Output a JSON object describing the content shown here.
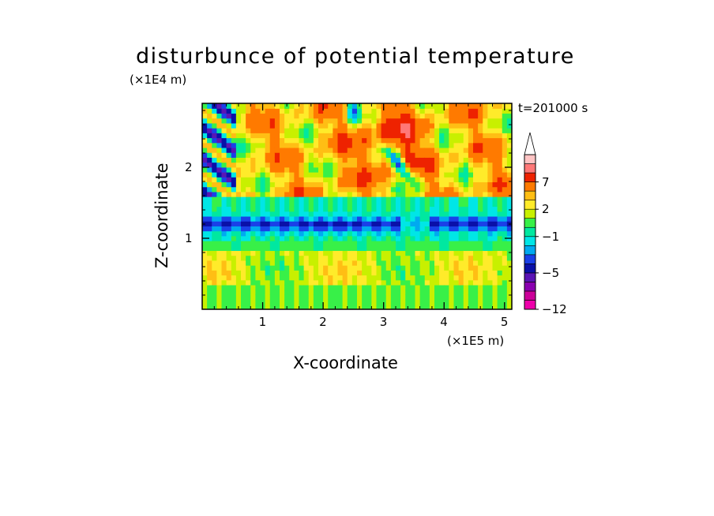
{
  "chart_data": {
    "type": "heatmap",
    "title": "disturbunce of potential temperature",
    "xlabel": "X-coordinate",
    "ylabel": "Z-coordinate",
    "x_units": "(×1E5 m)",
    "y_units": "(×1E4 m)",
    "time_label": "t=201000 s",
    "xlim": [
      0,
      5.12
    ],
    "ylim": [
      0,
      2.9
    ],
    "x_ticks": [
      "1",
      "2",
      "3",
      "4",
      "5"
    ],
    "y_ticks": [
      "1",
      "2"
    ],
    "colorbar": {
      "labels": [
        "7",
        "2",
        "−1",
        "−5",
        "−12"
      ],
      "levels": [
        -12,
        -9,
        -7,
        -6,
        -5,
        -4,
        -3,
        -2,
        -1,
        0,
        1,
        2,
        3,
        5,
        7,
        9
      ],
      "colors": [
        "#ee00aa",
        "#cc0099",
        "#8a00b0",
        "#5a14b4",
        "#0a10a8",
        "#1a40e8",
        "#00aaf0",
        "#00e6e6",
        "#00e8a0",
        "#38f048",
        "#c8f000",
        "#ffeb2a",
        "#ffbe14",
        "#ff7a00",
        "#ee2200",
        "#ff7878",
        "#ffc4c4"
      ],
      "extend": "upper"
    }
  }
}
